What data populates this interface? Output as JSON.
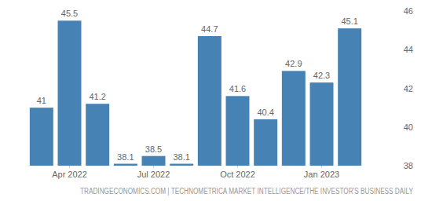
{
  "chart_data": {
    "type": "bar",
    "categories": [
      null,
      "Apr 2022",
      null,
      null,
      "Jul 2022",
      null,
      null,
      "Oct 2022",
      null,
      null,
      "Jan 2023",
      null
    ],
    "values": [
      41,
      45.5,
      41.2,
      38.1,
      38.5,
      38.1,
      44.7,
      41.6,
      40.4,
      42.9,
      42.3,
      45.1
    ],
    "color": "#4682b4",
    "ylim": [
      38,
      46
    ],
    "yticks": [
      38,
      40,
      42,
      44,
      46
    ],
    "grid": false,
    "data_labels": true,
    "source": "TRADINGECONOMICS.COM | TECHNOMETRICA MARKET INTELLIGENCE/THE INVESTOR'S BUSINESS DAILY"
  }
}
